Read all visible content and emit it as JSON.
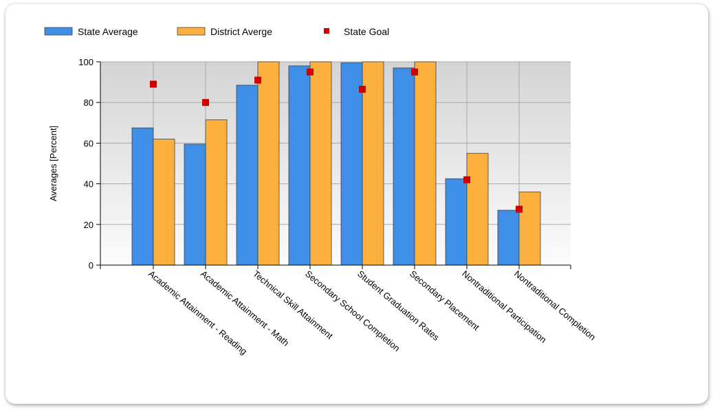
{
  "chart_data": {
    "type": "bar",
    "categories": [
      "Academic Attainment - Reading",
      "Academic Attainment - Math",
      "Technical Skill Attainment",
      "Secondary School Completion",
      "Student Graduation Rates",
      "Secondary Placement",
      "Nontraditional Participation",
      "Nontraditional Completion"
    ],
    "series": [
      {
        "name": "State Average",
        "kind": "bar",
        "color": "#3f8ee8",
        "values": [
          67.5,
          59.5,
          88.5,
          98,
          99.5,
          97,
          42.5,
          27
        ]
      },
      {
        "name": "District Averge",
        "kind": "bar",
        "color": "#fbb040",
        "values": [
          62,
          71.5,
          100,
          100,
          100,
          100,
          55,
          36
        ]
      },
      {
        "name": "State Goal",
        "kind": "point",
        "color": "#cc0000",
        "values": [
          89,
          80,
          91,
          95,
          86.5,
          95,
          42,
          27.5
        ]
      }
    ],
    "ylabel": "Averages [Percent]",
    "xlabel": "",
    "ylim": [
      0,
      100
    ],
    "yticks": [
      0,
      20,
      40,
      60,
      80,
      100
    ],
    "grid": true,
    "legend_position": "top-left"
  }
}
